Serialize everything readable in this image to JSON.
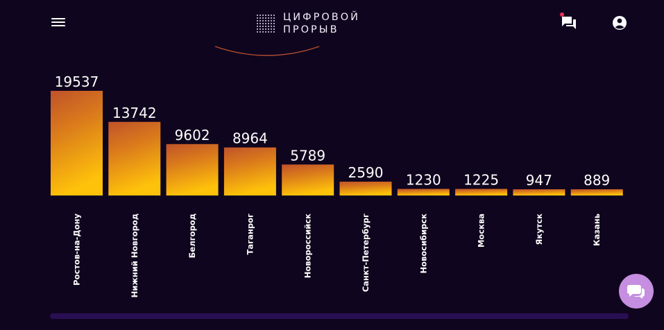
{
  "header": {
    "logo_line1": "ЦИФРОВОЙ",
    "logo_line2": "ПРОРЫВ",
    "icons": [
      "menu-icon",
      "chat-icon",
      "account-icon"
    ]
  },
  "colors": {
    "background": "#10051f",
    "bar_top": "#c0522a",
    "bar_bottom": "#ffc20a",
    "fab": "#c58ee0",
    "notification": "#e8335a"
  },
  "chart_data": {
    "type": "bar",
    "categories": [
      "Ростов-на-Дону",
      "Нижний Новгород",
      "Белгород",
      "Таганрог",
      "Новороссийск",
      "Санкт-Петербург",
      "Новосибирск",
      "Москва",
      "Якутск",
      "Казань"
    ],
    "values": [
      19537,
      13742,
      9602,
      8964,
      5789,
      2590,
      1230,
      1225,
      947,
      889
    ],
    "title": "",
    "xlabel": "",
    "ylabel": "",
    "ylim": [
      0,
      19537
    ],
    "grid": false,
    "legend": "none"
  }
}
